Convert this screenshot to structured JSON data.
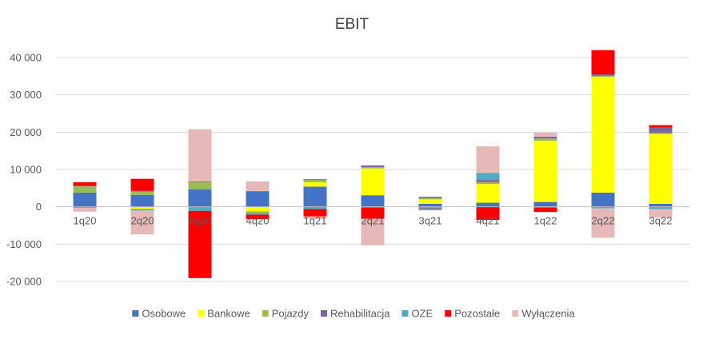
{
  "chart_data": {
    "type": "bar",
    "stacked": true,
    "title": "EBIT",
    "xlabel": "",
    "ylabel": "",
    "ylim": [
      -20000,
      40000
    ],
    "yticks": [
      40000,
      30000,
      20000,
      10000,
      0,
      -10000,
      -20000
    ],
    "ytick_labels": [
      "40 000",
      "30 000",
      "20 000",
      "10 000",
      "0",
      "-10 000",
      "-20 000"
    ],
    "grid": true,
    "legend_position": "bottom",
    "categories": [
      "1q20",
      "2q20",
      "3q20",
      "4q20",
      "1q21",
      "2q21",
      "3q21",
      "4q21",
      "1q22",
      "2q22",
      "3q22"
    ],
    "series": [
      {
        "name": "Osobowe",
        "color": "#4472C4",
        "values": [
          3800,
          3200,
          4700,
          4000,
          5400,
          3100,
          800,
          1100,
          1300,
          3800,
          800
        ]
      },
      {
        "name": "Bankowe",
        "color": "#FFFF00",
        "values": [
          0,
          -600,
          0,
          -1200,
          1200,
          7200,
          1200,
          5000,
          16400,
          31000,
          18700
        ]
      },
      {
        "name": "Pojazdy",
        "color": "#9BBB59",
        "values": [
          1700,
          900,
          1900,
          -500,
          600,
          300,
          400,
          500,
          600,
          300,
          300
        ]
      },
      {
        "name": "Rehabilitacja",
        "color": "#8064A2",
        "values": [
          200,
          200,
          200,
          200,
          200,
          500,
          300,
          600,
          500,
          400,
          1400
        ]
      },
      {
        "name": "OZE",
        "color": "#4BACC6",
        "values": [
          -300,
          -400,
          -1100,
          -400,
          -600,
          -200,
          -500,
          1900,
          -200,
          -400,
          -600
        ]
      },
      {
        "name": "Pozostałe",
        "color": "#FF0000",
        "values": [
          900,
          3200,
          -18000,
          -1200,
          -2000,
          -3000,
          -200,
          -3500,
          -1200,
          6500,
          700
        ]
      },
      {
        "name": "Wyłączenia",
        "color": "#E6B9B8",
        "values": [
          -1000,
          -6400,
          14000,
          2600,
          -600,
          -7100,
          -300,
          7100,
          1100,
          -7900,
          -2300
        ]
      }
    ]
  }
}
